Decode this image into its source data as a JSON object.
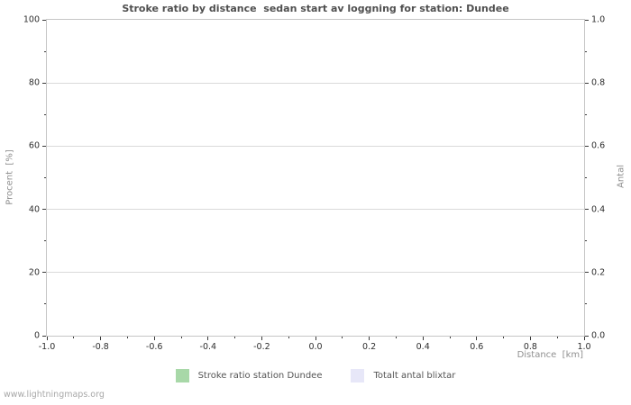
{
  "footer": "www.lightningmaps.org",
  "colors": {
    "title_text": "#4f4f4f",
    "tick_text": "#2e2e2e",
    "axis_label_text": "#8f8f8f",
    "grid_line": "#dadada",
    "plot_border": "#c6c6c6",
    "tick_mark": "#3a3a3a",
    "legend_green": "#a8d8a8",
    "legend_lavender": "#e7e7f8"
  },
  "legend": {
    "items": [
      {
        "label": "Stroke ratio station Dundee",
        "color": "#a8d8a8"
      },
      {
        "label": "Totalt antal blixtar",
        "color": "#e7e7f8"
      }
    ]
  },
  "chart_data": {
    "type": "line",
    "title": "Stroke ratio by distance  sedan start av loggning for station: Dundee",
    "xlabel": "Distance  [km]",
    "ylabel_left": "Procent  [%]",
    "ylabel_right": "Antal",
    "xlim": [
      -1.0,
      1.0
    ],
    "ylim_left": [
      0,
      100
    ],
    "ylim_right": [
      0.0,
      1.0
    ],
    "grid": "horizontal-major-only",
    "legend_position": "bottom-center",
    "x_tick_labels": [
      "-1.0",
      "-0.8",
      "-0.6",
      "-0.4",
      "-0.2",
      "0.0",
      "0.2",
      "0.4",
      "0.6",
      "0.8",
      "1.0"
    ],
    "x_minor_tick_step": 0.1,
    "y_left_tick_labels": [
      "0",
      "20",
      "40",
      "60",
      "80",
      "100"
    ],
    "y_left_minor_tick_step": 10,
    "y_right_tick_labels": [
      "0.0",
      "0.2",
      "0.4",
      "0.6",
      "0.8",
      "1.0"
    ],
    "y_right_minor_tick_step": 0.1,
    "series": [
      {
        "name": "Stroke ratio station Dundee",
        "color": "#a8d8a8",
        "values": []
      },
      {
        "name": "Totalt antal blixtar",
        "color": "#e7e7f8",
        "values": []
      }
    ],
    "note": "No data plotted; axes and grid only"
  }
}
